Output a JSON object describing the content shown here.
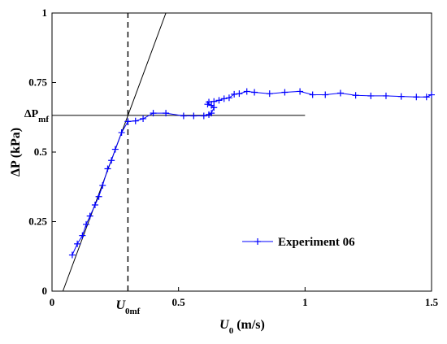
{
  "chart_data": {
    "type": "line",
    "xlabel": {
      "main": "U",
      "sub": "0",
      "unit": " (m/s)"
    },
    "ylabel": {
      "main": "ΔP",
      "unit": " (kPa)"
    },
    "xlim": [
      0,
      1.5
    ],
    "ylim": [
      0,
      1
    ],
    "x_ticks": [
      {
        "value": 0,
        "label": "0"
      },
      {
        "value": 0.5,
        "label": "0.5"
      },
      {
        "value": 1,
        "label": "1"
      },
      {
        "value": 1.5,
        "label": "1.5"
      }
    ],
    "y_ticks": [
      {
        "value": 0,
        "label": "0"
      },
      {
        "value": 0.25,
        "label": "0.25"
      },
      {
        "value": 0.5,
        "label": "0.5"
      },
      {
        "value": 0.75,
        "label": "0.75"
      },
      {
        "value": 1,
        "label": "1"
      }
    ],
    "extra_x_tick": {
      "value": 0.3,
      "main": "U",
      "sub": "0mf"
    },
    "extra_y_tick": {
      "value": 0.632,
      "main": "ΔP",
      "sub": "mf"
    },
    "grid": false,
    "legend": {
      "position": "bottom-right",
      "entries": [
        "Experiment 06"
      ]
    },
    "series": [
      {
        "name": "Experiment 06",
        "color": "#0000ff",
        "marker": "+",
        "points": [
          [
            0.08,
            0.13
          ],
          [
            0.1,
            0.17
          ],
          [
            0.12,
            0.2
          ],
          [
            0.135,
            0.24
          ],
          [
            0.15,
            0.27
          ],
          [
            0.17,
            0.31
          ],
          [
            0.185,
            0.34
          ],
          [
            0.2,
            0.38
          ],
          [
            0.22,
            0.44
          ],
          [
            0.235,
            0.47
          ],
          [
            0.25,
            0.51
          ],
          [
            0.275,
            0.57
          ],
          [
            0.3,
            0.61
          ],
          [
            0.33,
            0.612
          ],
          [
            0.36,
            0.62
          ],
          [
            0.4,
            0.64
          ],
          [
            0.45,
            0.64
          ],
          [
            0.52,
            0.63
          ],
          [
            0.56,
            0.63
          ],
          [
            0.6,
            0.63
          ],
          [
            0.62,
            0.635
          ],
          [
            0.63,
            0.64
          ],
          [
            0.64,
            0.66
          ],
          [
            0.63,
            0.668
          ],
          [
            0.615,
            0.672
          ],
          [
            0.62,
            0.68
          ],
          [
            0.64,
            0.682
          ],
          [
            0.66,
            0.686
          ],
          [
            0.68,
            0.692
          ],
          [
            0.7,
            0.695
          ],
          [
            0.72,
            0.708
          ],
          [
            0.74,
            0.71
          ],
          [
            0.77,
            0.718
          ],
          [
            0.8,
            0.715
          ],
          [
            0.86,
            0.71
          ],
          [
            0.92,
            0.715
          ],
          [
            0.98,
            0.718
          ],
          [
            1.03,
            0.706
          ],
          [
            1.08,
            0.706
          ],
          [
            1.14,
            0.712
          ],
          [
            1.2,
            0.704
          ],
          [
            1.26,
            0.702
          ],
          [
            1.32,
            0.702
          ],
          [
            1.38,
            0.7
          ],
          [
            1.44,
            0.698
          ],
          [
            1.48,
            0.698
          ],
          [
            1.5,
            0.706
          ]
        ]
      }
    ],
    "reference_lines": {
      "fixed_bed_fit": {
        "x1": 0.043,
        "y1": 0,
        "x2": 0.45,
        "y2": 1.0
      },
      "dpmf_horizontal": {
        "y": 0.632,
        "x_from": 0,
        "x_to": 1.0
      },
      "u0mf_vertical": {
        "x": 0.3,
        "y_from": 0,
        "y_to": 1
      }
    }
  }
}
